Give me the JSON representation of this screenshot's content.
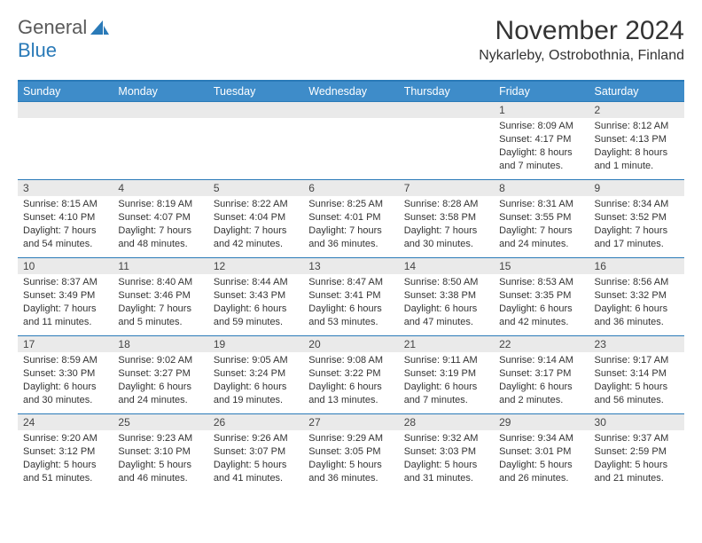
{
  "brand": {
    "part1": "General",
    "part2": "Blue"
  },
  "title": "November 2024",
  "location": "Nykarleby, Ostrobothnia, Finland",
  "colors": {
    "header_bg": "#3e8cc9",
    "rule": "#2a7ab8",
    "daynum_bg": "#eaeaea",
    "text": "#333333",
    "logo_gray": "#5a5a5a",
    "logo_blue": "#2a7ab8"
  },
  "day_headers": [
    "Sunday",
    "Monday",
    "Tuesday",
    "Wednesday",
    "Thursday",
    "Friday",
    "Saturday"
  ],
  "weeks": [
    [
      null,
      null,
      null,
      null,
      null,
      {
        "n": "1",
        "sunrise": "8:09 AM",
        "sunset": "4:17 PM",
        "daylight": "8 hours and 7 minutes."
      },
      {
        "n": "2",
        "sunrise": "8:12 AM",
        "sunset": "4:13 PM",
        "daylight": "8 hours and 1 minute."
      }
    ],
    [
      {
        "n": "3",
        "sunrise": "8:15 AM",
        "sunset": "4:10 PM",
        "daylight": "7 hours and 54 minutes."
      },
      {
        "n": "4",
        "sunrise": "8:19 AM",
        "sunset": "4:07 PM",
        "daylight": "7 hours and 48 minutes."
      },
      {
        "n": "5",
        "sunrise": "8:22 AM",
        "sunset": "4:04 PM",
        "daylight": "7 hours and 42 minutes."
      },
      {
        "n": "6",
        "sunrise": "8:25 AM",
        "sunset": "4:01 PM",
        "daylight": "7 hours and 36 minutes."
      },
      {
        "n": "7",
        "sunrise": "8:28 AM",
        "sunset": "3:58 PM",
        "daylight": "7 hours and 30 minutes."
      },
      {
        "n": "8",
        "sunrise": "8:31 AM",
        "sunset": "3:55 PM",
        "daylight": "7 hours and 24 minutes."
      },
      {
        "n": "9",
        "sunrise": "8:34 AM",
        "sunset": "3:52 PM",
        "daylight": "7 hours and 17 minutes."
      }
    ],
    [
      {
        "n": "10",
        "sunrise": "8:37 AM",
        "sunset": "3:49 PM",
        "daylight": "7 hours and 11 minutes."
      },
      {
        "n": "11",
        "sunrise": "8:40 AM",
        "sunset": "3:46 PM",
        "daylight": "7 hours and 5 minutes."
      },
      {
        "n": "12",
        "sunrise": "8:44 AM",
        "sunset": "3:43 PM",
        "daylight": "6 hours and 59 minutes."
      },
      {
        "n": "13",
        "sunrise": "8:47 AM",
        "sunset": "3:41 PM",
        "daylight": "6 hours and 53 minutes."
      },
      {
        "n": "14",
        "sunrise": "8:50 AM",
        "sunset": "3:38 PM",
        "daylight": "6 hours and 47 minutes."
      },
      {
        "n": "15",
        "sunrise": "8:53 AM",
        "sunset": "3:35 PM",
        "daylight": "6 hours and 42 minutes."
      },
      {
        "n": "16",
        "sunrise": "8:56 AM",
        "sunset": "3:32 PM",
        "daylight": "6 hours and 36 minutes."
      }
    ],
    [
      {
        "n": "17",
        "sunrise": "8:59 AM",
        "sunset": "3:30 PM",
        "daylight": "6 hours and 30 minutes."
      },
      {
        "n": "18",
        "sunrise": "9:02 AM",
        "sunset": "3:27 PM",
        "daylight": "6 hours and 24 minutes."
      },
      {
        "n": "19",
        "sunrise": "9:05 AM",
        "sunset": "3:24 PM",
        "daylight": "6 hours and 19 minutes."
      },
      {
        "n": "20",
        "sunrise": "9:08 AM",
        "sunset": "3:22 PM",
        "daylight": "6 hours and 13 minutes."
      },
      {
        "n": "21",
        "sunrise": "9:11 AM",
        "sunset": "3:19 PM",
        "daylight": "6 hours and 7 minutes."
      },
      {
        "n": "22",
        "sunrise": "9:14 AM",
        "sunset": "3:17 PM",
        "daylight": "6 hours and 2 minutes."
      },
      {
        "n": "23",
        "sunrise": "9:17 AM",
        "sunset": "3:14 PM",
        "daylight": "5 hours and 56 minutes."
      }
    ],
    [
      {
        "n": "24",
        "sunrise": "9:20 AM",
        "sunset": "3:12 PM",
        "daylight": "5 hours and 51 minutes."
      },
      {
        "n": "25",
        "sunrise": "9:23 AM",
        "sunset": "3:10 PM",
        "daylight": "5 hours and 46 minutes."
      },
      {
        "n": "26",
        "sunrise": "9:26 AM",
        "sunset": "3:07 PM",
        "daylight": "5 hours and 41 minutes."
      },
      {
        "n": "27",
        "sunrise": "9:29 AM",
        "sunset": "3:05 PM",
        "daylight": "5 hours and 36 minutes."
      },
      {
        "n": "28",
        "sunrise": "9:32 AM",
        "sunset": "3:03 PM",
        "daylight": "5 hours and 31 minutes."
      },
      {
        "n": "29",
        "sunrise": "9:34 AM",
        "sunset": "3:01 PM",
        "daylight": "5 hours and 26 minutes."
      },
      {
        "n": "30",
        "sunrise": "9:37 AM",
        "sunset": "2:59 PM",
        "daylight": "5 hours and 21 minutes."
      }
    ]
  ],
  "labels": {
    "sunrise": "Sunrise:",
    "sunset": "Sunset:",
    "daylight": "Daylight:"
  }
}
